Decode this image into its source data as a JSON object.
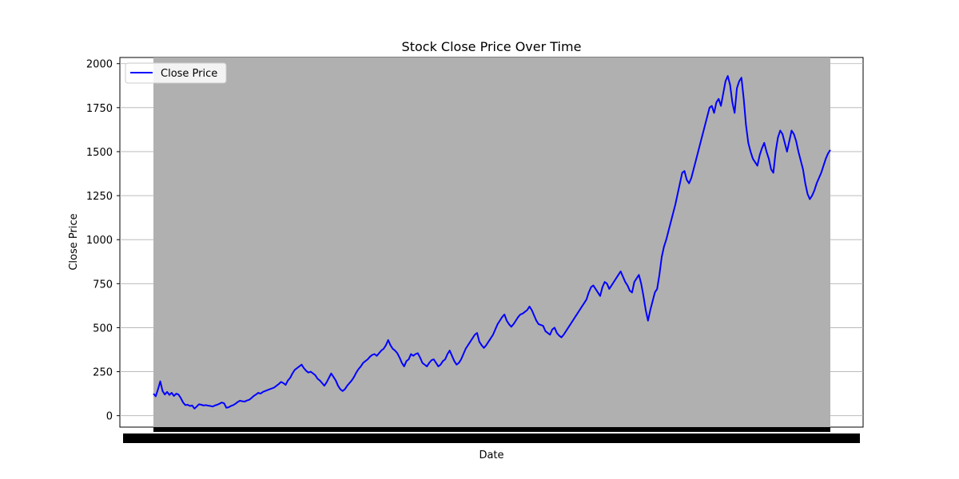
{
  "chart_data": {
    "type": "line",
    "title": "Stock Close Price Over Time",
    "xlabel": "Date",
    "ylabel": "Close Price",
    "ylim": [
      -65,
      2035
    ],
    "yticks": [
      0,
      250,
      500,
      750,
      1000,
      1250,
      1500,
      1750,
      2000
    ],
    "ytick_labels": [
      "0",
      "250",
      "500",
      "750",
      "1000",
      "1250",
      "1500",
      "1750",
      "2000"
    ],
    "grid": "horizontal",
    "legend_position": "top-left",
    "x_tick_labels": "overlapping and illegible",
    "colors": {
      "line": "#0000ff",
      "plot_background": "#b0b0b0"
    },
    "series": [
      {
        "name": "Close Price",
        "values": [
          125,
          110,
          150,
          195,
          140,
          120,
          135,
          118,
          130,
          112,
          125,
          120,
          100,
          75,
          60,
          62,
          55,
          58,
          40,
          52,
          65,
          62,
          58,
          60,
          57,
          55,
          52,
          58,
          62,
          68,
          75,
          70,
          45,
          48,
          55,
          60,
          68,
          78,
          85,
          82,
          80,
          86,
          90,
          100,
          112,
          120,
          130,
          125,
          135,
          140,
          145,
          150,
          155,
          160,
          170,
          180,
          192,
          185,
          175,
          200,
          215,
          240,
          260,
          270,
          280,
          290,
          270,
          255,
          245,
          250,
          240,
          230,
          210,
          200,
          185,
          170,
          190,
          215,
          240,
          220,
          200,
          170,
          150,
          140,
          150,
          170,
          185,
          200,
          220,
          245,
          265,
          280,
          300,
          310,
          320,
          335,
          345,
          350,
          340,
          355,
          370,
          380,
          400,
          430,
          400,
          380,
          370,
          355,
          330,
          300,
          280,
          310,
          320,
          350,
          340,
          350,
          355,
          330,
          300,
          290,
          280,
          300,
          315,
          320,
          300,
          280,
          290,
          310,
          320,
          350,
          370,
          340,
          310,
          290,
          300,
          320,
          350,
          380,
          400,
          420,
          440,
          460,
          470,
          420,
          400,
          385,
          400,
          420,
          440,
          460,
          490,
          520,
          540,
          560,
          575,
          540,
          520,
          505,
          520,
          540,
          560,
          575,
          580,
          590,
          600,
          620,
          600,
          570,
          540,
          520,
          515,
          510,
          480,
          470,
          460,
          490,
          500,
          470,
          455,
          445,
          460,
          480,
          500,
          520,
          540,
          560,
          580,
          600,
          620,
          640,
          660,
          700,
          730,
          740,
          720,
          700,
          680,
          730,
          760,
          750,
          720,
          740,
          760,
          780,
          800,
          820,
          790,
          760,
          740,
          710,
          700,
          760,
          780,
          800,
          750,
          680,
          600,
          540,
          600,
          650,
          700,
          720,
          800,
          900,
          960,
          1000,
          1050,
          1100,
          1150,
          1200,
          1260,
          1320,
          1380,
          1390,
          1340,
          1320,
          1350,
          1400,
          1450,
          1500,
          1550,
          1600,
          1650,
          1700,
          1750,
          1760,
          1720,
          1780,
          1800,
          1760,
          1830,
          1900,
          1930,
          1880,
          1780,
          1720,
          1860,
          1900,
          1920,
          1800,
          1650,
          1550,
          1500,
          1460,
          1440,
          1420,
          1480,
          1520,
          1550,
          1500,
          1460,
          1400,
          1380,
          1500,
          1580,
          1620,
          1600,
          1550,
          1500,
          1560,
          1620,
          1600,
          1560,
          1500,
          1450,
          1400,
          1320,
          1260,
          1230,
          1250,
          1280,
          1320,
          1350,
          1380,
          1420,
          1460,
          1490,
          1510
        ]
      }
    ]
  }
}
